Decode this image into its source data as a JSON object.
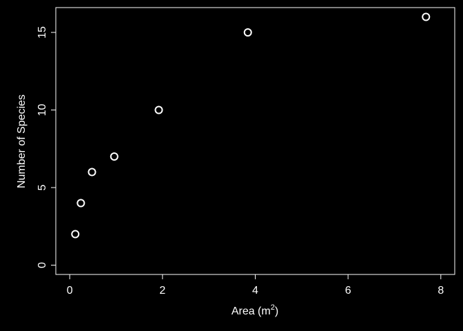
{
  "chart_data": {
    "type": "scatter",
    "title": "",
    "xlabel": "Area (m",
    "xlabel_sup": "2",
    "xlabel_close": ")",
    "ylabel": "Number of Species",
    "xlim": [
      -0.3,
      8.3
    ],
    "ylim": [
      -0.6,
      16.6
    ],
    "x_ticks": [
      0,
      2,
      4,
      6,
      8
    ],
    "y_ticks": [
      0,
      5,
      10,
      15
    ],
    "x_tick_labels": [
      "0",
      "2",
      "4",
      "6",
      "8"
    ],
    "y_tick_labels": [
      "0",
      "5",
      "10",
      "15"
    ],
    "grid": false,
    "marker": "open-circle",
    "x": [
      0.12,
      0.24,
      0.48,
      0.96,
      1.92,
      3.84,
      7.68
    ],
    "y": [
      2,
      4,
      6,
      7,
      10,
      15,
      16
    ]
  },
  "colors": {
    "background": "#000000",
    "foreground": "#ffffff"
  }
}
